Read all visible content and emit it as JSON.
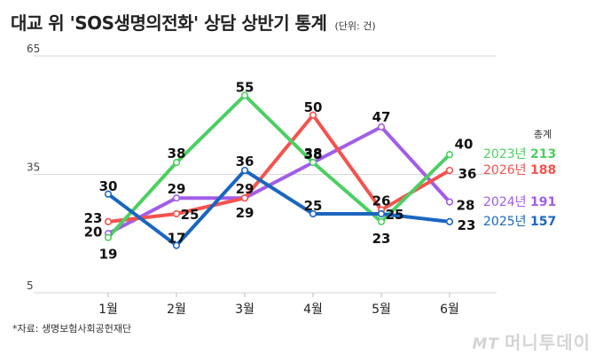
{
  "header": {
    "title": "대교 위 'SOS생명의전화' 상담 상반기 통계",
    "unit": "(단위: 건)"
  },
  "legend_header": "총계",
  "source": "*자료: 생명보험사회공헌재단",
  "watermark": {
    "mt": "MT",
    "name": "머니투데이"
  },
  "chart_data": {
    "type": "line",
    "title": "대교 위 'SOS생명의전화' 상담 상반기 통계",
    "xlabel": "",
    "ylabel": "",
    "categories": [
      "1월",
      "2월",
      "3월",
      "4월",
      "5월",
      "6월"
    ],
    "y_ticks": [
      5,
      35,
      65
    ],
    "ylim": [
      5,
      65
    ],
    "grid": "horizontal",
    "legend_position": "right",
    "series": [
      {
        "name": "2023년",
        "total": "213",
        "color": "#4ccf62",
        "values": [
          19,
          38,
          55,
          38,
          23,
          40
        ]
      },
      {
        "name": "2026년",
        "total": "188",
        "color": "#f5524e",
        "values": [
          23,
          25,
          29,
          50,
          26,
          36
        ]
      },
      {
        "name": "2024년",
        "total": "191",
        "color": "#a25de8",
        "values": [
          20,
          29,
          29,
          38,
          47,
          28
        ]
      },
      {
        "name": "2025년",
        "total": "157",
        "color": "#1a66c0",
        "values": [
          30,
          17,
          36,
          25,
          25,
          23
        ]
      }
    ]
  }
}
